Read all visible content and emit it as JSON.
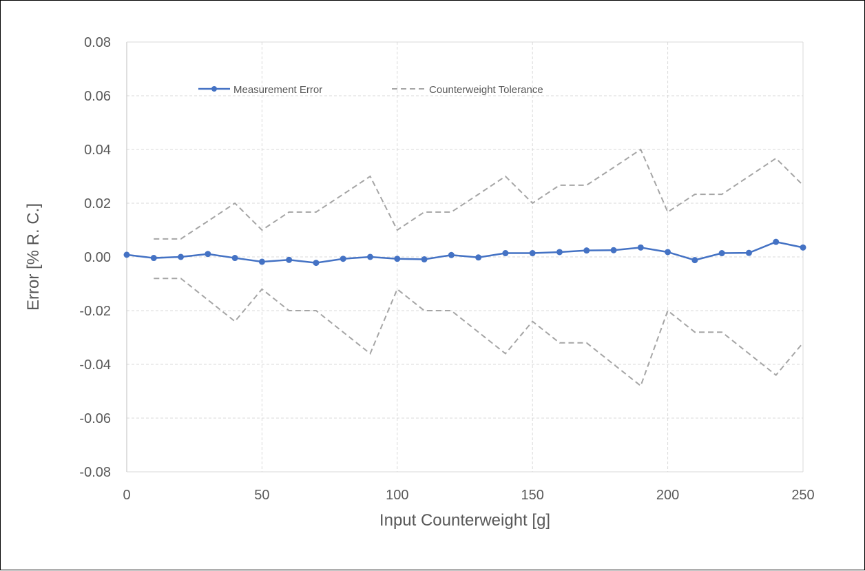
{
  "chart_data": {
    "type": "line",
    "title": "",
    "xlabel": "Input Counterweight  [g]",
    "ylabel": "Error  [% R. C.]",
    "xlim": [
      0,
      250
    ],
    "ylim": [
      -0.08,
      0.08
    ],
    "xticks": [
      0,
      50,
      100,
      150,
      200,
      250
    ],
    "yticks": [
      0.08,
      0.06,
      0.04,
      0.02,
      0.0,
      -0.02,
      -0.04,
      -0.06,
      -0.08
    ],
    "ytick_labels": [
      "0.08",
      "0.06",
      "0.04",
      "0.02",
      "0.00",
      "-0.02",
      "-0.04",
      "-0.06",
      "-0.08"
    ],
    "grid": true,
    "legend_position": "top-left",
    "series": [
      {
        "name": "Measurement Error",
        "color": "#4472C4",
        "style": "solid-markers",
        "x": [
          0,
          10,
          20,
          30,
          40,
          50,
          60,
          70,
          80,
          90,
          100,
          110,
          120,
          130,
          140,
          150,
          160,
          170,
          180,
          190,
          200,
          210,
          220,
          230,
          240,
          250
        ],
        "y": [
          0.0008,
          -0.0004,
          0.0,
          0.0011,
          -0.0004,
          -0.0018,
          -0.0011,
          -0.0022,
          -0.0007,
          0.0,
          -0.0007,
          -0.0009,
          0.0007,
          -0.0002,
          0.0014,
          0.0014,
          0.0018,
          0.0024,
          0.0025,
          0.0035,
          0.0018,
          -0.0012,
          0.0014,
          0.0015,
          0.0056,
          0.0035
        ]
      },
      {
        "name": "Counterweight Tolerance",
        "color": "#A5A5A5",
        "style": "dashed",
        "x": [
          10,
          20,
          30,
          40,
          50,
          60,
          70,
          80,
          90,
          100,
          110,
          120,
          130,
          140,
          150,
          160,
          170,
          180,
          190,
          200,
          210,
          220,
          230,
          240,
          250
        ],
        "y": [
          0.0067,
          0.0067,
          0.0133,
          0.02,
          0.01,
          0.0167,
          0.0167,
          0.0233,
          0.03,
          0.01,
          0.0167,
          0.0167,
          0.0233,
          0.03,
          0.02,
          0.0267,
          0.0267,
          0.0333,
          0.04,
          0.0167,
          0.0233,
          0.0233,
          0.03,
          0.0367,
          0.0267
        ]
      },
      {
        "name": "",
        "color": "#A5A5A5",
        "style": "dashed",
        "x": [
          10,
          20,
          30,
          40,
          50,
          60,
          70,
          80,
          90,
          100,
          110,
          120,
          130,
          140,
          150,
          160,
          170,
          180,
          190,
          200,
          210,
          220,
          230,
          240,
          250
        ],
        "y": [
          -0.008,
          -0.008,
          -0.016,
          -0.024,
          -0.012,
          -0.02,
          -0.02,
          -0.028,
          -0.036,
          -0.012,
          -0.02,
          -0.02,
          -0.028,
          -0.036,
          -0.024,
          -0.032,
          -0.032,
          -0.04,
          -0.048,
          -0.02,
          -0.028,
          -0.028,
          -0.036,
          -0.044,
          -0.032
        ]
      }
    ]
  }
}
